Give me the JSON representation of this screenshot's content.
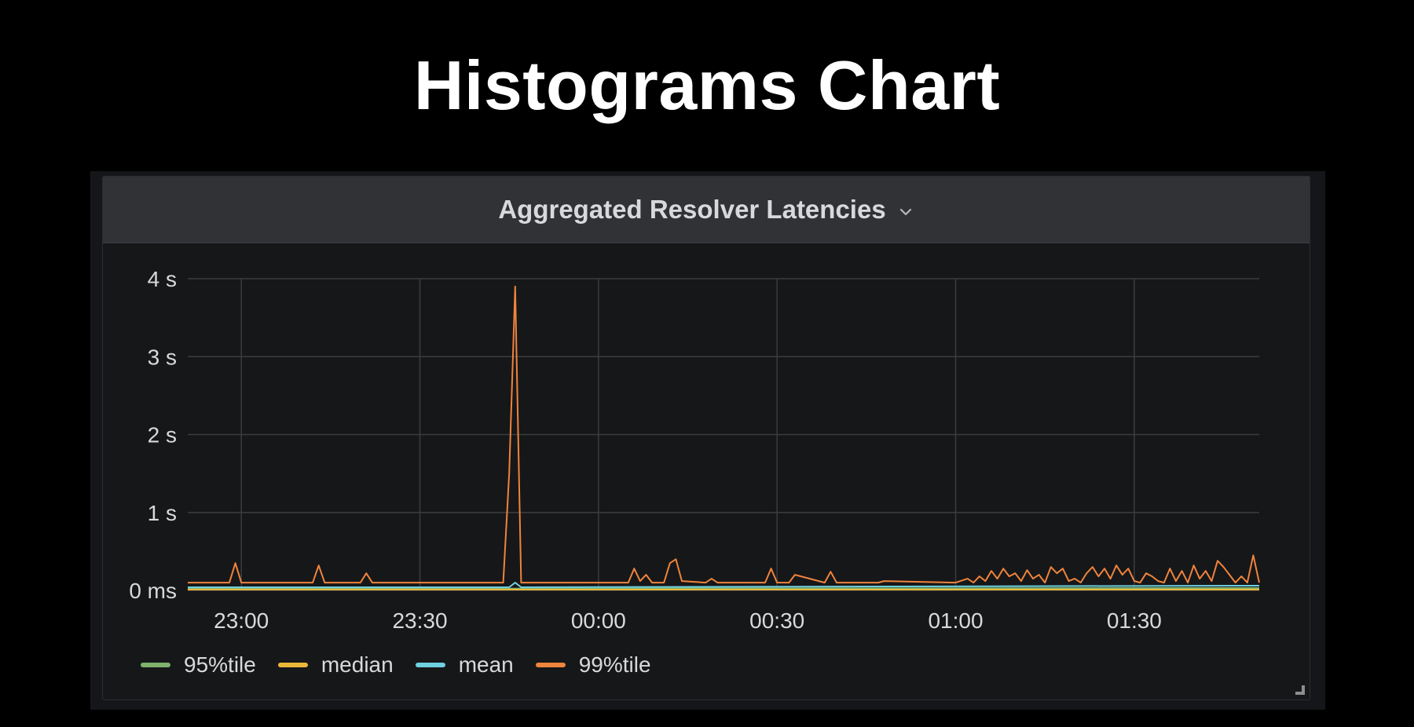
{
  "slide": {
    "title": "Histograms Chart"
  },
  "panel": {
    "title": "Aggregated Resolver Latencies",
    "menu_icon": "chevron-down-icon",
    "resize_icon": "resize-corner-icon"
  },
  "chart_data": {
    "type": "line",
    "title": "Aggregated Resolver Latencies",
    "xlabel": "",
    "ylabel": "",
    "x_unit": "time",
    "y_unit": "seconds",
    "xlim": [
      "22:51",
      "01:51"
    ],
    "ylim": [
      0,
      4
    ],
    "x_ticks": [
      "23:00",
      "23:30",
      "00:00",
      "00:30",
      "01:00",
      "01:30"
    ],
    "y_ticks": [
      {
        "value": 0,
        "label": "0 ms"
      },
      {
        "value": 1,
        "label": "1 s"
      },
      {
        "value": 2,
        "label": "2 s"
      },
      {
        "value": 3,
        "label": "3 s"
      },
      {
        "value": 4,
        "label": "4 s"
      }
    ],
    "grid": true,
    "legend_position": "bottom-left",
    "series": [
      {
        "name": "95%tile",
        "color": "#7eb26d",
        "x": [
          "22:51",
          "01:51"
        ],
        "values": [
          0.02,
          0.03
        ]
      },
      {
        "name": "median",
        "color": "#eab839",
        "x": [
          "22:51",
          "01:51"
        ],
        "values": [
          0.01,
          0.01
        ]
      },
      {
        "name": "mean",
        "color": "#6ed0e0",
        "x": [
          "22:51",
          "23:45",
          "23:46",
          "23:47",
          "01:51"
        ],
        "values": [
          0.04,
          0.04,
          0.1,
          0.04,
          0.06
        ]
      },
      {
        "name": "99%tile",
        "color": "#ef843c",
        "x": [
          "22:51",
          "22:58",
          "22:59",
          "23:00",
          "23:12",
          "23:13",
          "23:14",
          "23:20",
          "23:21",
          "23:22",
          "23:44",
          "23:45",
          "23:46",
          "23:47",
          "00:05",
          "00:06",
          "00:07",
          "00:08",
          "00:09",
          "00:11",
          "00:12",
          "00:13",
          "00:14",
          "00:18",
          "00:19",
          "00:20",
          "00:28",
          "00:29",
          "00:30",
          "00:32",
          "00:33",
          "00:38",
          "00:39",
          "00:40",
          "00:47",
          "00:48",
          "01:00",
          "01:02",
          "01:03",
          "01:04",
          "01:05",
          "01:06",
          "01:07",
          "01:08",
          "01:09",
          "01:10",
          "01:11",
          "01:12",
          "01:13",
          "01:14",
          "01:15",
          "01:16",
          "01:17",
          "01:18",
          "01:19",
          "01:20",
          "01:21",
          "01:22",
          "01:23",
          "01:24",
          "01:25",
          "01:26",
          "01:27",
          "01:28",
          "01:29",
          "01:30",
          "01:31",
          "01:32",
          "01:33",
          "01:34",
          "01:35",
          "01:36",
          "01:37",
          "01:38",
          "01:39",
          "01:40",
          "01:41",
          "01:42",
          "01:43",
          "01:44",
          "01:45",
          "01:46",
          "01:47",
          "01:48",
          "01:49",
          "01:50",
          "01:51"
        ],
        "values": [
          0.1,
          0.1,
          0.35,
          0.1,
          0.1,
          0.32,
          0.1,
          0.1,
          0.22,
          0.1,
          0.1,
          1.5,
          3.9,
          0.1,
          0.1,
          0.28,
          0.12,
          0.2,
          0.1,
          0.1,
          0.35,
          0.4,
          0.12,
          0.1,
          0.15,
          0.1,
          0.1,
          0.28,
          0.1,
          0.1,
          0.2,
          0.1,
          0.24,
          0.1,
          0.1,
          0.12,
          0.1,
          0.15,
          0.1,
          0.18,
          0.12,
          0.25,
          0.15,
          0.28,
          0.18,
          0.22,
          0.12,
          0.26,
          0.15,
          0.2,
          0.1,
          0.3,
          0.22,
          0.28,
          0.12,
          0.15,
          0.1,
          0.22,
          0.3,
          0.18,
          0.28,
          0.15,
          0.32,
          0.2,
          0.28,
          0.12,
          0.1,
          0.22,
          0.18,
          0.12,
          0.1,
          0.28,
          0.12,
          0.25,
          0.1,
          0.32,
          0.15,
          0.25,
          0.12,
          0.38,
          0.3,
          0.2,
          0.1,
          0.18,
          0.1,
          0.45,
          0.1
        ]
      }
    ]
  }
}
